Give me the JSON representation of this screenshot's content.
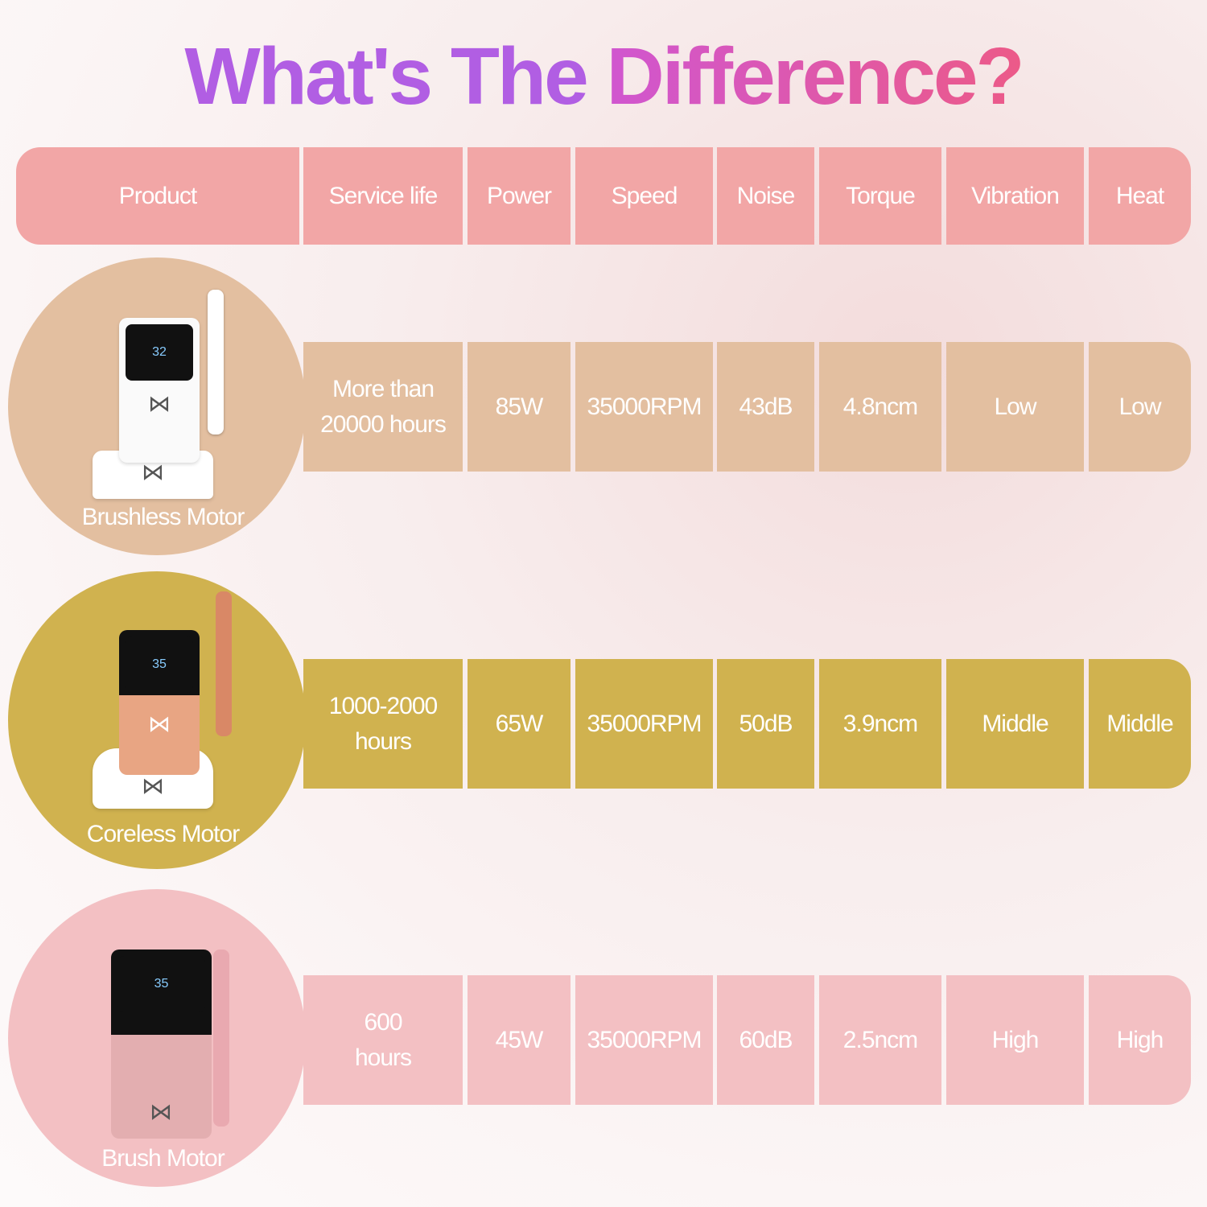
{
  "title": {
    "part1": "What's The ",
    "part2": "Difference?"
  },
  "header": [
    "Product",
    "Service life",
    "Power",
    "Speed",
    "Noise",
    "Torque",
    "Vibration",
    "Heat"
  ],
  "rows": [
    {
      "product": "Brushless Motor",
      "color": "#e3bfa0",
      "service_life": [
        "More than",
        "20000 hours"
      ],
      "power": "85W",
      "speed": "35000RPM",
      "noise": "43dB",
      "torque": "4.8ncm",
      "vibration": "Low",
      "heat": "Low"
    },
    {
      "product": "Coreless Motor",
      "color": "#d0b24f",
      "service_life": [
        "1000-2000",
        "hours"
      ],
      "power": "65W",
      "speed": "35000RPM",
      "noise": "50dB",
      "torque": "3.9ncm",
      "vibration": "Middle",
      "heat": "Middle"
    },
    {
      "product": "Brush Motor",
      "color": "#f3c0c3",
      "service_life": [
        "600",
        "hours"
      ],
      "power": "45W",
      "speed": "35000RPM",
      "noise": "60dB",
      "torque": "2.5ncm",
      "vibration": "High",
      "heat": "High"
    }
  ],
  "colors": {
    "header": "#f2a6a6",
    "title_purple": "#b15ee3",
    "title_pink": "#ec5a88"
  },
  "device_screens": [
    "32",
    "35",
    "35"
  ]
}
